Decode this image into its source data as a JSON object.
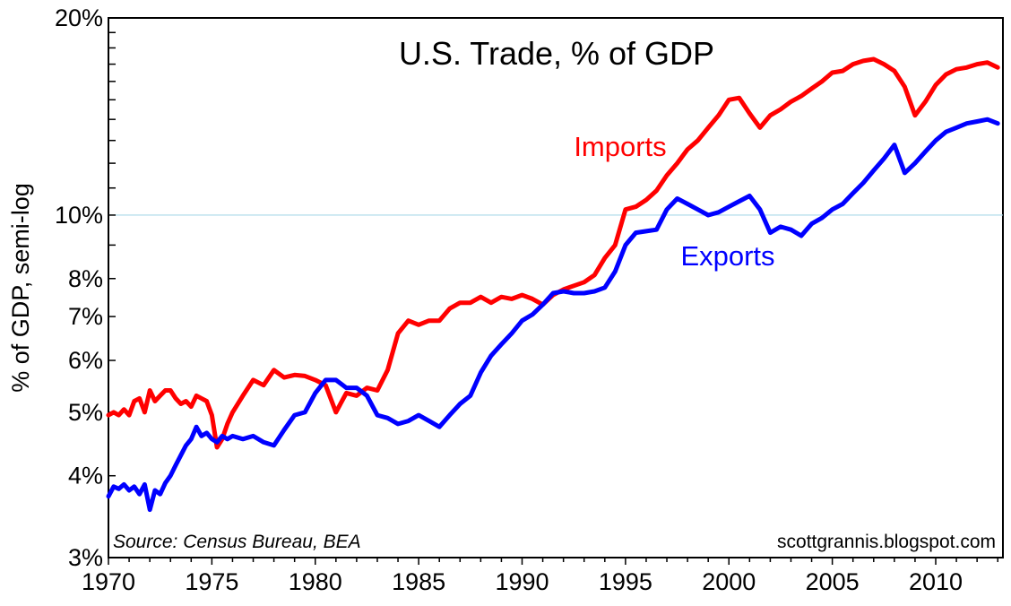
{
  "chart_data": {
    "type": "line",
    "title": "U.S. Trade, % of GDP",
    "xlabel": "",
    "ylabel": "% of GDP, semi-log",
    "y_scale": "log",
    "xlim": [
      1970,
      2013.25
    ],
    "ylim": [
      3,
      20
    ],
    "grid": "single horizontal line at 10%",
    "x_ticks": [
      1970,
      1975,
      1980,
      1985,
      1990,
      1995,
      2000,
      2005,
      2010
    ],
    "x_tick_labels": [
      "1970",
      "1975",
      "1980",
      "1985",
      "1990",
      "1995",
      "2000",
      "2005",
      "2010"
    ],
    "y_ticks": [
      3,
      4,
      5,
      6,
      7,
      8,
      10,
      20
    ],
    "y_tick_labels": [
      "3%",
      "4%",
      "5%",
      "6%",
      "7%",
      "8%",
      "10%",
      "20%"
    ],
    "source_note": "Source:  Census Bureau, BEA",
    "credit": "scottgrannis.blogspot.com",
    "series": [
      {
        "name": "Imports",
        "color": "#ff0000",
        "x": [
          1970.0,
          1970.25,
          1970.5,
          1970.75,
          1971.0,
          1971.25,
          1971.5,
          1971.75,
          1972.0,
          1972.25,
          1972.5,
          1972.75,
          1973.0,
          1973.25,
          1973.5,
          1973.75,
          1974.0,
          1974.25,
          1974.5,
          1974.75,
          1975.0,
          1975.25,
          1975.5,
          1975.75,
          1976.0,
          1976.5,
          1977.0,
          1977.5,
          1978.0,
          1978.5,
          1979.0,
          1979.5,
          1980.0,
          1980.5,
          1981.0,
          1981.5,
          1982.0,
          1982.5,
          1983.0,
          1983.5,
          1984.0,
          1984.5,
          1985.0,
          1985.5,
          1986.0,
          1986.5,
          1987.0,
          1987.5,
          1988.0,
          1988.5,
          1989.0,
          1989.5,
          1990.0,
          1990.5,
          1991.0,
          1991.5,
          1992.0,
          1992.5,
          1993.0,
          1993.5,
          1994.0,
          1994.5,
          1995.0,
          1995.5,
          1996.0,
          1996.5,
          1997.0,
          1997.5,
          1998.0,
          1998.5,
          1999.0,
          1999.5,
          2000.0,
          2000.5,
          2001.0,
          2001.5,
          2002.0,
          2002.5,
          2003.0,
          2003.5,
          2004.0,
          2004.5,
          2005.0,
          2005.5,
          2006.0,
          2006.5,
          2007.0,
          2007.5,
          2008.0,
          2008.5,
          2009.0,
          2009.5,
          2010.0,
          2010.5,
          2011.0,
          2011.5,
          2012.0,
          2012.5,
          2013.0
        ],
        "values": [
          4.95,
          5.0,
          4.95,
          5.05,
          4.95,
          5.2,
          5.25,
          5.0,
          5.4,
          5.2,
          5.3,
          5.4,
          5.4,
          5.25,
          5.15,
          5.2,
          5.1,
          5.3,
          5.25,
          5.2,
          4.95,
          4.42,
          4.55,
          4.8,
          5.0,
          5.3,
          5.6,
          5.5,
          5.8,
          5.65,
          5.7,
          5.68,
          5.6,
          5.5,
          5.0,
          5.35,
          5.3,
          5.45,
          5.4,
          5.8,
          6.6,
          6.9,
          6.8,
          6.9,
          6.9,
          7.2,
          7.35,
          7.35,
          7.5,
          7.35,
          7.5,
          7.45,
          7.55,
          7.45,
          7.3,
          7.55,
          7.7,
          7.8,
          7.9,
          8.1,
          8.6,
          9.0,
          10.2,
          10.3,
          10.55,
          10.9,
          11.5,
          12.0,
          12.6,
          13.0,
          13.6,
          14.2,
          15.0,
          15.1,
          14.3,
          13.6,
          14.2,
          14.5,
          14.9,
          15.2,
          15.6,
          16.0,
          16.5,
          16.6,
          17.0,
          17.2,
          17.3,
          17.0,
          16.6,
          15.7,
          14.2,
          14.9,
          15.8,
          16.4,
          16.7,
          16.8,
          17.0,
          17.1,
          16.8
        ]
      },
      {
        "name": "Exports",
        "color": "#0000ff",
        "x": [
          1970.0,
          1970.25,
          1970.5,
          1970.75,
          1971.0,
          1971.25,
          1971.5,
          1971.75,
          1972.0,
          1972.25,
          1972.5,
          1972.75,
          1973.0,
          1973.25,
          1973.5,
          1973.75,
          1974.0,
          1974.25,
          1974.5,
          1974.75,
          1975.0,
          1975.25,
          1975.5,
          1975.75,
          1976.0,
          1976.5,
          1977.0,
          1977.5,
          1978.0,
          1978.5,
          1979.0,
          1979.5,
          1980.0,
          1980.5,
          1981.0,
          1981.5,
          1982.0,
          1982.5,
          1983.0,
          1983.5,
          1984.0,
          1984.5,
          1985.0,
          1985.5,
          1986.0,
          1986.5,
          1987.0,
          1987.5,
          1988.0,
          1988.5,
          1989.0,
          1989.5,
          1990.0,
          1990.5,
          1991.0,
          1991.5,
          1992.0,
          1992.5,
          1993.0,
          1993.5,
          1994.0,
          1994.5,
          1995.0,
          1995.5,
          1996.0,
          1996.5,
          1997.0,
          1997.5,
          1998.0,
          1998.5,
          1999.0,
          1999.5,
          2000.0,
          2000.5,
          2001.0,
          2001.5,
          2002.0,
          2002.5,
          2003.0,
          2003.5,
          2004.0,
          2004.5,
          2005.0,
          2005.5,
          2006.0,
          2006.5,
          2007.0,
          2007.5,
          2008.0,
          2008.5,
          2009.0,
          2009.5,
          2010.0,
          2010.5,
          2011.0,
          2011.5,
          2012.0,
          2012.5,
          2013.0
        ],
        "values": [
          3.72,
          3.85,
          3.82,
          3.88,
          3.8,
          3.85,
          3.75,
          3.88,
          3.55,
          3.8,
          3.75,
          3.9,
          4.0,
          4.15,
          4.3,
          4.45,
          4.55,
          4.75,
          4.6,
          4.65,
          4.55,
          4.5,
          4.6,
          4.55,
          4.6,
          4.55,
          4.6,
          4.5,
          4.45,
          4.7,
          4.95,
          5.0,
          5.35,
          5.6,
          5.6,
          5.45,
          5.45,
          5.3,
          4.95,
          4.9,
          4.8,
          4.85,
          4.95,
          4.85,
          4.75,
          4.95,
          5.15,
          5.3,
          5.75,
          6.1,
          6.35,
          6.6,
          6.9,
          7.05,
          7.3,
          7.6,
          7.65,
          7.6,
          7.6,
          7.65,
          7.75,
          8.2,
          9.0,
          9.4,
          9.45,
          9.5,
          10.2,
          10.6,
          10.4,
          10.2,
          10.0,
          10.1,
          10.3,
          10.5,
          10.7,
          10.2,
          9.4,
          9.6,
          9.5,
          9.3,
          9.7,
          9.9,
          10.2,
          10.4,
          10.8,
          11.2,
          11.7,
          12.2,
          12.8,
          11.6,
          12.0,
          12.5,
          13.0,
          13.4,
          13.6,
          13.8,
          13.9,
          14.0,
          13.8
        ]
      }
    ]
  }
}
